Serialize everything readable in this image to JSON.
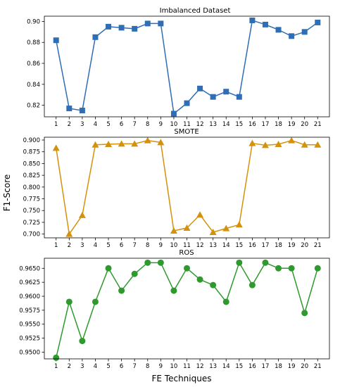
{
  "figure": {
    "ylabel": "F1-Score",
    "xlabel": "FE Techniques"
  },
  "chart_data": [
    {
      "type": "line",
      "title": "Imbalanced Dataset",
      "x": [
        1,
        2,
        3,
        4,
        5,
        6,
        7,
        8,
        9,
        10,
        11,
        12,
        13,
        14,
        15,
        16,
        17,
        18,
        19,
        20,
        21
      ],
      "x_tick_labels": [
        "1",
        "2",
        "3",
        "4",
        "5",
        "6",
        "7",
        "8",
        "9",
        "10",
        "11",
        "12",
        "13",
        "14",
        "15",
        "16",
        "17",
        "18",
        "19",
        "20",
        "21"
      ],
      "series": [
        {
          "values": [
            0.882,
            0.817,
            0.815,
            0.885,
            0.895,
            0.894,
            0.893,
            0.898,
            0.898,
            0.812,
            0.822,
            0.836,
            0.828,
            0.833,
            0.828,
            0.901,
            0.897,
            0.892,
            0.886,
            0.89,
            0.899
          ]
        }
      ],
      "ylim": [
        0.809,
        0.905
      ],
      "y_ticks": [
        0.82,
        0.84,
        0.86,
        0.88,
        0.9
      ],
      "y_tick_labels": [
        "0.82",
        "0.84",
        "0.86",
        "0.88",
        "0.90"
      ],
      "color": "#2f6db5",
      "marker": "square",
      "grid": false
    },
    {
      "type": "line",
      "title": "SMOTE",
      "x": [
        1,
        2,
        3,
        4,
        5,
        6,
        7,
        8,
        9,
        10,
        11,
        12,
        13,
        14,
        15,
        16,
        17,
        18,
        19,
        20,
        21
      ],
      "x_tick_labels": [
        "1",
        "2",
        "3",
        "4",
        "5",
        "6",
        "7",
        "8",
        "9",
        "10",
        "11",
        "12",
        "13",
        "14",
        "15",
        "16",
        "17",
        "18",
        "19",
        "20",
        "21"
      ],
      "series": [
        {
          "values": [
            0.883,
            0.7,
            0.74,
            0.89,
            0.891,
            0.892,
            0.892,
            0.899,
            0.895,
            0.707,
            0.713,
            0.741,
            0.704,
            0.712,
            0.72,
            0.893,
            0.889,
            0.891,
            0.899,
            0.89,
            0.89
          ]
        }
      ],
      "ylim": [
        0.692,
        0.906
      ],
      "y_ticks": [
        0.7,
        0.725,
        0.75,
        0.775,
        0.8,
        0.825,
        0.85,
        0.875,
        0.9
      ],
      "y_tick_labels": [
        "0.700",
        "0.725",
        "0.750",
        "0.775",
        "0.800",
        "0.825",
        "0.850",
        "0.875",
        "0.900"
      ],
      "color": "#d4920c",
      "marker": "triangle",
      "grid": false
    },
    {
      "type": "line",
      "title": "ROS",
      "x": [
        1,
        2,
        3,
        4,
        5,
        6,
        7,
        8,
        9,
        10,
        11,
        12,
        13,
        14,
        15,
        16,
        17,
        18,
        19,
        20,
        21
      ],
      "x_tick_labels": [
        "1",
        "2",
        "3",
        "4",
        "5",
        "6",
        "7",
        "8",
        "9",
        "10",
        "11",
        "12",
        "13",
        "14",
        "15",
        "16",
        "17",
        "18",
        "19",
        "20",
        "21"
      ],
      "series": [
        {
          "values": [
            0.949,
            0.959,
            0.952,
            0.959,
            0.965,
            0.961,
            0.964,
            0.966,
            0.966,
            0.961,
            0.965,
            0.963,
            0.962,
            0.959,
            0.966,
            0.962,
            0.966,
            0.965,
            0.965,
            0.957,
            0.965
          ]
        }
      ],
      "ylim": [
        0.9488,
        0.9668
      ],
      "y_ticks": [
        0.95,
        0.9525,
        0.955,
        0.9575,
        0.96,
        0.9625,
        0.965
      ],
      "y_tick_labels": [
        "0.9500",
        "0.9525",
        "0.9550",
        "0.9575",
        "0.9600",
        "0.9625",
        "0.9650"
      ],
      "color": "#2e9a2e",
      "marker": "circle",
      "grid": false
    }
  ]
}
